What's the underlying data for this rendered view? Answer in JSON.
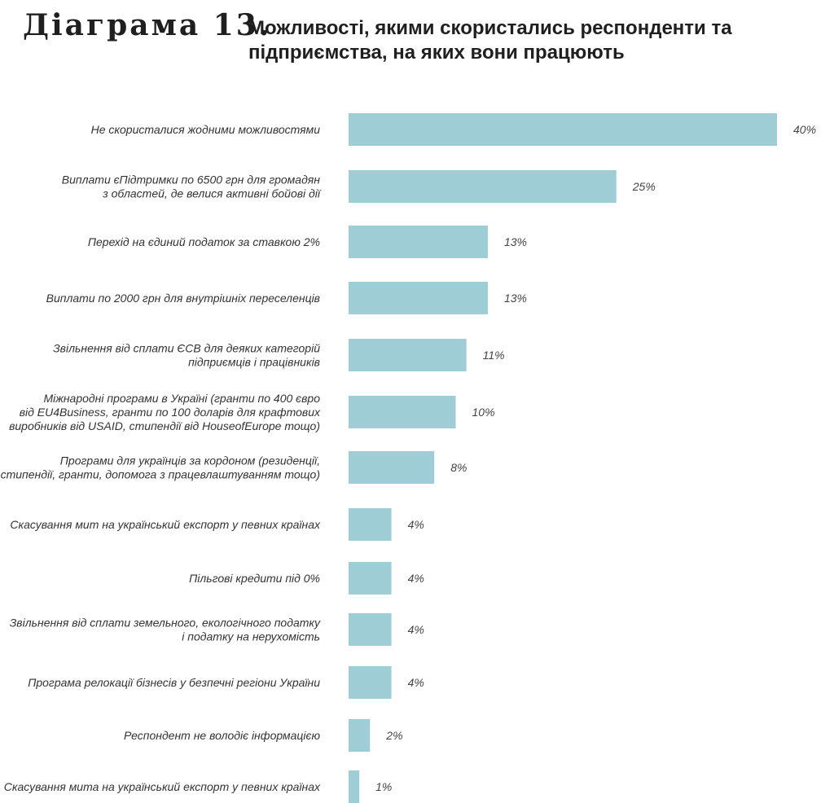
{
  "header": {
    "diagram_label": "Діаграма 13.",
    "title": "Можливості, якими скористались респонденти та підприємства, на яких вони працюють"
  },
  "colors": {
    "bar": "#9ecdd6",
    "text": "#333333"
  },
  "chart_data": {
    "type": "bar",
    "orientation": "horizontal",
    "title": "Можливості, якими скористались респонденти та підприємства, на яких вони працюють",
    "categories": [
      "Не скористалися жодними можливостями",
      "Виплати єПідтримки по 6500 грн для громадян з областей, де велися активні бойові дії",
      "Перехід на єдиний податок за ставкою 2%",
      "Виплати по 2000 грн для внутрішніх переселенців",
      "Звільнення від сплати ЄСВ для деяких категорій підприємців і працівників",
      "Міжнародні програми в Україні (гранти по 400 євро від EU4Business, гранти по 100 доларів для крафтових виробників від USAID, стипендії від HouseofEurope тощо)",
      "Програми для українців за кордоном (резиденції, стипендії, гранти, допомога з працевлаштуванням тощо)",
      "Скасування мит на український експорт у певних країнах",
      "Пільгові кредити під 0%",
      "Звільнення від сплати земельного, екологічного податку і податку на нерухомість",
      "Програма релокації бізнесів у безпечні регіони України",
      "Респондент не володіє інформацією",
      "Скасування мита на український експорт у певних країнах"
    ],
    "label_lines": [
      [
        "Не скористалися жодними можливостями"
      ],
      [
        "Виплати єПідтримки по 6500 грн для громадян",
        "з областей, де велися активні бойові дії"
      ],
      [
        "Перехід на єдиний податок за ставкою 2%"
      ],
      [
        "Виплати по 2000 грн для внутрішніх переселенців"
      ],
      [
        "Звільнення від сплати ЄСВ для деяких категорій",
        "підприємців і працівників"
      ],
      [
        "Міжнародні програми в Україні (гранти по 400 євро",
        "від EU4Business, гранти по 100 доларів для крафтових",
        "виробників від USAID, стипендії від HouseofEurope тощо)"
      ],
      [
        "Програми для українців за кордоном (резиденції,",
        "стипендії, гранти, допомога з працевлаштуванням тощо)"
      ],
      [
        "Скасування мит на український експорт у певних країнах"
      ],
      [
        "Пільгові кредити під 0%"
      ],
      [
        "Звільнення від сплати земельного, екологічного податку",
        "і податку на нерухомість"
      ],
      [
        "Програма релокації бізнесів у безпечні регіони України"
      ],
      [
        "Респондент не володіє інформацією"
      ],
      [
        "Скасування мита на український експорт у певних країнах"
      ]
    ],
    "values": [
      40,
      25,
      13,
      13,
      11,
      10,
      8,
      4,
      4,
      4,
      4,
      2,
      1
    ],
    "value_labels": [
      "40%",
      "25%",
      "13%",
      "13%",
      "11%",
      "10%",
      "8%",
      "4%",
      "4%",
      "4%",
      "4%",
      "2%",
      "1%"
    ],
    "xlim": [
      0,
      40
    ],
    "unit": "%",
    "grid": false,
    "legend": "none"
  }
}
